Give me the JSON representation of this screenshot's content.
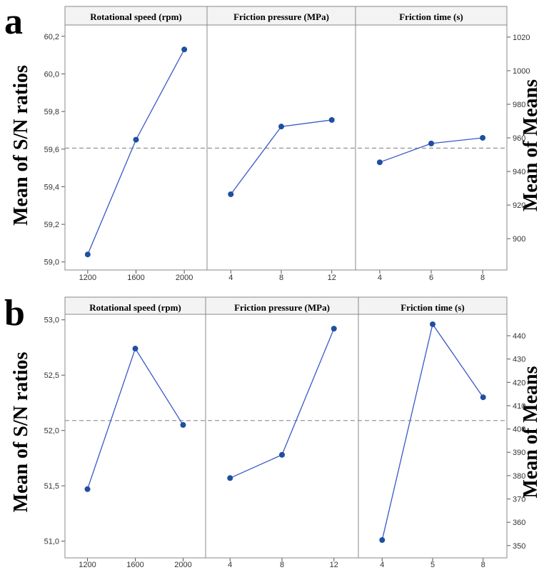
{
  "panels": [
    {
      "label": "a",
      "ylabel_left": "Mean of S/N ratios",
      "ylabel_right": "Mean of Means",
      "mean_line": 59.605,
      "chart_data": {
        "type": "line",
        "title": "",
        "ylim": [
          58.98,
          60.26
        ],
        "yticks": [
          "59,0",
          "59,2",
          "59,4",
          "59,6",
          "59,8",
          "60,0",
          "60,2"
        ],
        "ytick_values": [
          59.0,
          59.2,
          59.4,
          59.6,
          59.8,
          60.0,
          60.2
        ],
        "right_ylim": [
          883.9,
          1027.2
        ],
        "right_yticks": [
          "900",
          "920",
          "940",
          "960",
          "980",
          "1000",
          "1020"
        ],
        "right_ytick_values": [
          900,
          920,
          940,
          960,
          980,
          1000,
          1020
        ],
        "grid": false,
        "factors": [
          {
            "name": "Rotational speed (rpm)",
            "categories": [
              "1200",
              "1600",
              "2000"
            ],
            "values": [
              59.04,
              59.65,
              60.13
            ]
          },
          {
            "name": "Friction pressure (MPa)",
            "categories": [
              "4",
              "8",
              "12"
            ],
            "values": [
              59.36,
              59.72,
              59.755
            ]
          },
          {
            "name": "Friction time (s)",
            "categories": [
              "4",
              "6",
              "8"
            ],
            "values": [
              59.53,
              59.63,
              59.66
            ]
          }
        ]
      }
    },
    {
      "label": "b",
      "ylabel_left": "Mean of S/N ratios",
      "ylabel_right": "Mean of Means",
      "mean_line": 52.09,
      "chart_data": {
        "type": "line",
        "title": "",
        "ylim": [
          50.92,
          53.05
        ],
        "yticks": [
          "51,0",
          "51,5",
          "52,0",
          "52,5",
          "53,0"
        ],
        "ytick_values": [
          51.0,
          51.5,
          52.0,
          52.5,
          53.0
        ],
        "right_ylim": [
          348.1,
          449.2
        ],
        "right_yticks": [
          "350",
          "360",
          "370",
          "380",
          "390",
          "400",
          "410",
          "420",
          "430",
          "440"
        ],
        "right_ytick_values": [
          350,
          360,
          370,
          380,
          390,
          400,
          410,
          420,
          430,
          440
        ],
        "grid": false,
        "factors": [
          {
            "name": "Rotational speed (rpm)",
            "categories": [
              "1200",
              "1600",
              "2000"
            ],
            "values": [
              51.47,
              52.74,
              52.05
            ]
          },
          {
            "name": "Friction pressure (MPa)",
            "categories": [
              "4",
              "8",
              "12"
            ],
            "values": [
              51.57,
              51.78,
              52.92
            ]
          },
          {
            "name": "Friction time (s)",
            "categories": [
              "4",
              "5",
              "8"
            ],
            "values": [
              51.01,
              52.96,
              52.3
            ]
          }
        ]
      }
    }
  ],
  "colors": {
    "line": "#3a58c8",
    "marker": "#1e4fa0",
    "frame": "#8a8a8a",
    "mean": "#9a9a9a",
    "header": "#f3f3f3"
  }
}
